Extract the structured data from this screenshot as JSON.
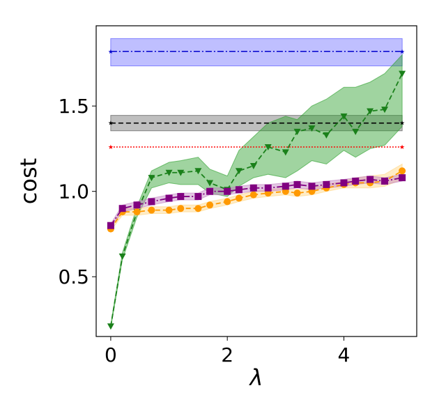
{
  "chart_data": {
    "type": "line",
    "xlabel": "λ",
    "ylabel": "cost",
    "xlim": [
      -0.25,
      5.25
    ],
    "ylim": [
      0.15,
      1.97
    ],
    "xticks": [
      0,
      2,
      4
    ],
    "xtick_labels": [
      "0",
      "2",
      "4"
    ],
    "yticks": [
      0.5,
      1.0,
      1.5
    ],
    "ytick_labels": [
      "0.5",
      "1.0",
      "1.5"
    ],
    "grid": false,
    "legend": "none",
    "reference_lines": [
      {
        "color": "#0000cc",
        "style": "dashdot",
        "x": [
          0,
          5
        ],
        "value": 1.82,
        "band": [
          1.735,
          1.895
        ],
        "band_color": "#8080ff"
      },
      {
        "color": "#000000",
        "style": "dashed",
        "x": [
          0,
          5
        ],
        "value": 1.4,
        "band": [
          1.355,
          1.445
        ],
        "band_color": "#808080"
      },
      {
        "color": "#ff0000",
        "style": "dotted",
        "x": [
          0,
          5
        ],
        "value": 1.26,
        "band": null,
        "band_color": null
      }
    ],
    "series": [
      {
        "color": "#1a801a",
        "band_color": "#2ca02c",
        "marker": "triangle-down",
        "style": "dashed",
        "x": [
          0,
          0.2,
          0.45,
          0.7,
          1.0,
          1.2,
          1.5,
          1.7,
          2.0,
          2.2,
          2.45,
          2.7,
          3.0,
          3.2,
          3.45,
          3.7,
          4.0,
          4.2,
          4.45,
          4.7,
          5.0
        ],
        "values": [
          0.21,
          0.62,
          0.88,
          1.08,
          1.11,
          1.11,
          1.12,
          1.05,
          1.01,
          1.12,
          1.15,
          1.26,
          1.23,
          1.35,
          1.37,
          1.33,
          1.44,
          1.35,
          1.47,
          1.48,
          1.69
        ],
        "band_low": [
          0.2,
          0.6,
          0.85,
          1.02,
          1.05,
          1.04,
          1.04,
          0.99,
          0.97,
          1.03,
          1.08,
          1.1,
          1.08,
          1.12,
          1.18,
          1.16,
          1.24,
          1.2,
          1.25,
          1.27,
          1.38
        ],
        "band_high": [
          0.22,
          0.64,
          0.91,
          1.12,
          1.17,
          1.18,
          1.2,
          1.13,
          1.09,
          1.24,
          1.32,
          1.4,
          1.44,
          1.42,
          1.5,
          1.54,
          1.61,
          1.61,
          1.64,
          1.69,
          1.8
        ]
      },
      {
        "color": "#ff9900",
        "band_color": "#ffd580",
        "marker": "circle",
        "style": "dashed",
        "x": [
          0,
          0.2,
          0.45,
          0.7,
          1.0,
          1.2,
          1.5,
          1.7,
          2.0,
          2.2,
          2.45,
          2.7,
          3.0,
          3.2,
          3.45,
          3.7,
          4.0,
          4.2,
          4.45,
          4.7,
          5.0
        ],
        "values": [
          0.78,
          0.88,
          0.88,
          0.89,
          0.89,
          0.9,
          0.9,
          0.92,
          0.94,
          0.96,
          0.98,
          0.99,
          1.0,
          0.99,
          1.0,
          1.02,
          1.04,
          1.05,
          1.05,
          1.06,
          1.12
        ],
        "band_low": [
          0.77,
          0.86,
          0.86,
          0.87,
          0.87,
          0.88,
          0.88,
          0.9,
          0.92,
          0.94,
          0.96,
          0.97,
          0.98,
          0.97,
          0.98,
          1.0,
          1.02,
          1.02,
          1.02,
          1.03,
          1.07
        ],
        "band_high": [
          0.79,
          0.9,
          0.9,
          0.91,
          0.91,
          0.92,
          0.92,
          0.94,
          0.96,
          0.98,
          1.0,
          1.01,
          1.02,
          1.01,
          1.02,
          1.04,
          1.06,
          1.08,
          1.09,
          1.1,
          1.16
        ]
      },
      {
        "color": "#800080",
        "band_color": "#c080c0",
        "marker": "square",
        "style": "dashdot",
        "x": [
          0,
          0.2,
          0.45,
          0.7,
          1.0,
          1.2,
          1.5,
          1.7,
          2.0,
          2.2,
          2.45,
          2.7,
          3.0,
          3.2,
          3.45,
          3.7,
          4.0,
          4.2,
          4.45,
          4.7,
          5.0
        ],
        "values": [
          0.8,
          0.9,
          0.92,
          0.94,
          0.96,
          0.97,
          0.97,
          1.0,
          1.0,
          1.01,
          1.02,
          1.02,
          1.03,
          1.04,
          1.03,
          1.04,
          1.05,
          1.06,
          1.07,
          1.06,
          1.08
        ],
        "band_low": [
          0.79,
          0.88,
          0.9,
          0.92,
          0.94,
          0.95,
          0.95,
          0.98,
          0.98,
          0.99,
          1.0,
          1.0,
          1.01,
          1.02,
          1.01,
          1.02,
          1.03,
          1.04,
          1.05,
          1.04,
          1.06
        ],
        "band_high": [
          0.81,
          0.92,
          0.94,
          0.96,
          0.98,
          0.99,
          0.99,
          1.02,
          1.02,
          1.03,
          1.04,
          1.04,
          1.05,
          1.06,
          1.05,
          1.06,
          1.07,
          1.08,
          1.09,
          1.08,
          1.1
        ]
      }
    ]
  }
}
